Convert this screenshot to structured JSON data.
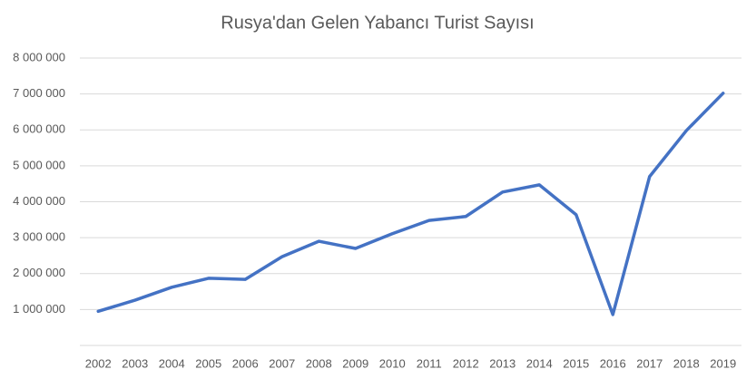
{
  "chart_data": {
    "type": "line",
    "title": "Rusya'dan Gelen Yabancı Turist Sayısı",
    "categories": [
      "2002",
      "2003",
      "2004",
      "2005",
      "2006",
      "2007",
      "2008",
      "2009",
      "2010",
      "2011",
      "2012",
      "2013",
      "2014",
      "2015",
      "2016",
      "2017",
      "2018",
      "2019"
    ],
    "series": [
      {
        "color": "#4472c4",
        "values": [
          950000,
          1260000,
          1620000,
          1870000,
          1840000,
          2470000,
          2900000,
          2700000,
          3110000,
          3480000,
          3590000,
          4270000,
          4470000,
          3640000,
          860000,
          4700000,
          5980000,
          7020000
        ]
      }
    ],
    "ylim": [
      0,
      8000000
    ],
    "yticks": [
      {
        "value": 1000000,
        "label": "1 000 000"
      },
      {
        "value": 2000000,
        "label": "2 000 000"
      },
      {
        "value": 3000000,
        "label": "3 000 000"
      },
      {
        "value": 4000000,
        "label": "4 000 000"
      },
      {
        "value": 5000000,
        "label": "5 000 000"
      },
      {
        "value": 6000000,
        "label": "6 000 000"
      },
      {
        "value": 7000000,
        "label": "7 000 000"
      },
      {
        "value": 8000000,
        "label": "8 000 000"
      }
    ],
    "grid": true
  }
}
